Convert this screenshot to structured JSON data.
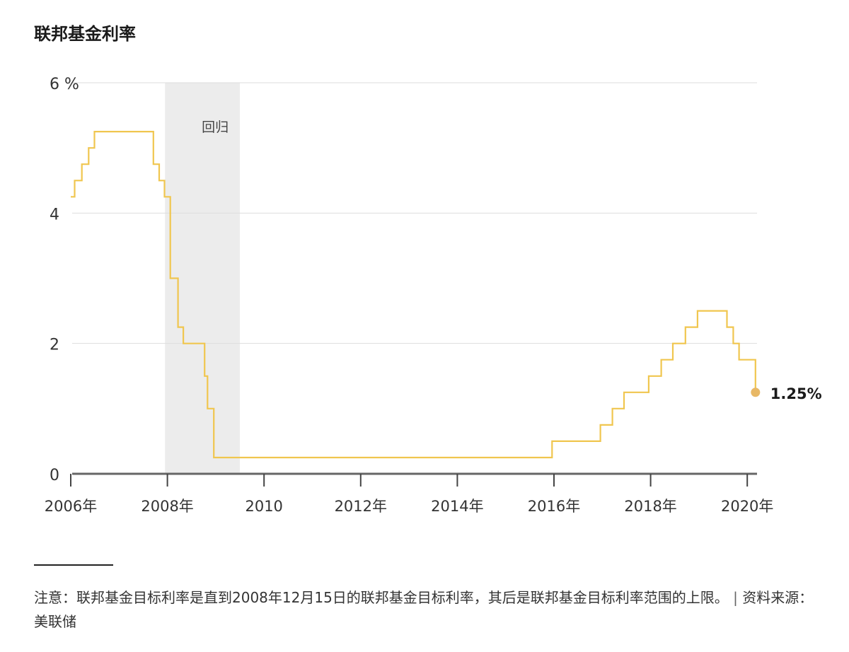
{
  "title": "联邦基金利率",
  "chart_data": {
    "type": "line",
    "step": true,
    "title": "联邦基金利率",
    "xlabel": "",
    "ylabel": "",
    "xlim": [
      2006.0,
      2020.3
    ],
    "ylim": [
      0,
      6
    ],
    "y_ticks": [
      {
        "value": 6,
        "label": "6 %"
      },
      {
        "value": 4,
        "label": "4"
      },
      {
        "value": 2,
        "label": "2"
      },
      {
        "value": 0,
        "label": "0"
      }
    ],
    "x_ticks": [
      {
        "value": 2006,
        "label": "2006年"
      },
      {
        "value": 2008,
        "label": "2008年"
      },
      {
        "value": 2010,
        "label": "2010"
      },
      {
        "value": 2012,
        "label": "2012年"
      },
      {
        "value": 2014,
        "label": "2014年"
      },
      {
        "value": 2016,
        "label": "2016年"
      },
      {
        "value": 2018,
        "label": "2018年"
      },
      {
        "value": 2020,
        "label": "2020年"
      }
    ],
    "grid": true,
    "recession": {
      "label": "回归",
      "start": 2007.95,
      "end": 2009.5
    },
    "series": [
      {
        "color": "#f0c64f",
        "points": [
          [
            2006.0,
            4.25
          ],
          [
            2006.08,
            4.5
          ],
          [
            2006.23,
            4.75
          ],
          [
            2006.37,
            5.0
          ],
          [
            2006.49,
            5.25
          ],
          [
            2007.71,
            4.75
          ],
          [
            2007.83,
            4.5
          ],
          [
            2007.94,
            4.25
          ],
          [
            2008.06,
            3.0
          ],
          [
            2008.22,
            2.25
          ],
          [
            2008.33,
            2.0
          ],
          [
            2008.77,
            1.5
          ],
          [
            2008.83,
            1.0
          ],
          [
            2008.96,
            0.25
          ],
          [
            2015.96,
            0.5
          ],
          [
            2016.96,
            0.75
          ],
          [
            2017.21,
            1.0
          ],
          [
            2017.45,
            1.25
          ],
          [
            2017.96,
            1.5
          ],
          [
            2018.22,
            1.75
          ],
          [
            2018.46,
            2.0
          ],
          [
            2018.72,
            2.25
          ],
          [
            2018.97,
            2.5
          ],
          [
            2019.58,
            2.25
          ],
          [
            2019.71,
            2.0
          ],
          [
            2019.83,
            1.75
          ],
          [
            2020.17,
            1.25
          ]
        ]
      }
    ],
    "end_label": {
      "value": 1.25,
      "text": "1.25%"
    },
    "end_marker_color": "#e8b866"
  },
  "note": {
    "text": "注意：联邦基金目标利率是直到2008年12月15日的联邦基金目标利率，其后是联邦基金目标利率范围的上限。",
    "separator": "|",
    "source": "资料来源：美联储"
  }
}
